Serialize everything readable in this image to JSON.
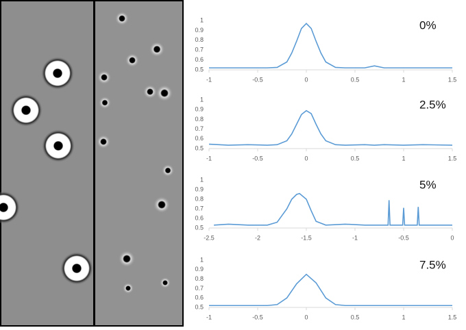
{
  "chart_data": [
    {
      "type": "line",
      "annotation": "0%",
      "color": "#5b9bd5",
      "x": [
        -1,
        -0.8,
        -0.6,
        -0.4,
        -0.3,
        -0.2,
        -0.15,
        -0.1,
        -0.05,
        0,
        0.05,
        0.1,
        0.15,
        0.2,
        0.3,
        0.4,
        0.6,
        0.7,
        0.8,
        1,
        1.2,
        1.5
      ],
      "values": [
        0.52,
        0.52,
        0.52,
        0.52,
        0.525,
        0.58,
        0.67,
        0.79,
        0.92,
        0.97,
        0.92,
        0.79,
        0.67,
        0.58,
        0.525,
        0.52,
        0.52,
        0.54,
        0.52,
        0.52,
        0.52,
        0.52
      ],
      "xlim": [
        -1,
        1.5
      ],
      "xticks": [
        -1,
        -0.5,
        0,
        0.5,
        1,
        1.5
      ],
      "ylim": [
        0.5,
        1
      ],
      "yticks": [
        0.5,
        0.6,
        0.7,
        0.8,
        0.9,
        1
      ]
    },
    {
      "type": "line",
      "annotation": "2.5%",
      "color": "#5b9bd5",
      "x": [
        -1,
        -0.8,
        -0.6,
        -0.4,
        -0.3,
        -0.2,
        -0.15,
        -0.1,
        -0.05,
        0,
        0.05,
        0.1,
        0.15,
        0.2,
        0.3,
        0.4,
        0.6,
        0.7,
        0.8,
        1,
        1.2,
        1.5
      ],
      "values": [
        0.545,
        0.535,
        0.54,
        0.535,
        0.54,
        0.58,
        0.65,
        0.75,
        0.85,
        0.89,
        0.86,
        0.75,
        0.65,
        0.58,
        0.54,
        0.535,
        0.54,
        0.535,
        0.54,
        0.535,
        0.54,
        0.535
      ],
      "xlim": [
        -1,
        1.5
      ],
      "xticks": [
        -1,
        -0.5,
        0,
        0.5,
        1,
        1.5
      ],
      "ylim": [
        0.5,
        1
      ],
      "yticks": [
        0.5,
        0.6,
        0.7,
        0.8,
        0.9,
        1
      ]
    },
    {
      "type": "line",
      "annotation": "5%",
      "color": "#5b9bd5",
      "x": [
        -2.45,
        -2.3,
        -2.1,
        -1.9,
        -1.8,
        -1.7,
        -1.65,
        -1.6,
        -1.57,
        -1.5,
        -1.45,
        -1.4,
        -1.3,
        -1.1,
        -0.9,
        -0.66,
        -0.65,
        -0.64,
        -0.51,
        -0.5,
        -0.49,
        -0.36,
        -0.35,
        -0.34,
        -0.2,
        0
      ],
      "values": [
        0.53,
        0.54,
        0.53,
        0.53,
        0.56,
        0.7,
        0.8,
        0.85,
        0.86,
        0.8,
        0.68,
        0.57,
        0.53,
        0.54,
        0.53,
        0.53,
        0.79,
        0.53,
        0.53,
        0.71,
        0.53,
        0.53,
        0.72,
        0.53,
        0.53,
        0.53
      ],
      "xlim": [
        -2.5,
        0
      ],
      "xticks": [
        -2.5,
        -2,
        -1.5,
        -1,
        -0.5,
        0
      ],
      "ylim": [
        0.5,
        1
      ],
      "yticks": [
        0.5,
        0.6,
        0.7,
        0.8,
        0.9,
        1
      ]
    },
    {
      "type": "line",
      "annotation": "7.5%",
      "color": "#5b9bd5",
      "x": [
        -1,
        -0.8,
        -0.6,
        -0.4,
        -0.3,
        -0.2,
        -0.1,
        0,
        0.1,
        0.2,
        0.3,
        0.4,
        0.6,
        0.8,
        1,
        1.2,
        1.5
      ],
      "values": [
        0.52,
        0.52,
        0.52,
        0.52,
        0.53,
        0.6,
        0.75,
        0.85,
        0.76,
        0.6,
        0.53,
        0.52,
        0.52,
        0.52,
        0.52,
        0.52,
        0.52
      ],
      "xlim": [
        -1,
        1.5
      ],
      "xticks": [
        -1,
        -0.5,
        0,
        0.5,
        1,
        1.5
      ],
      "ylim": [
        0.5,
        1
      ],
      "yticks": [
        0.5,
        0.6,
        0.7,
        0.8,
        0.9,
        1
      ]
    }
  ]
}
